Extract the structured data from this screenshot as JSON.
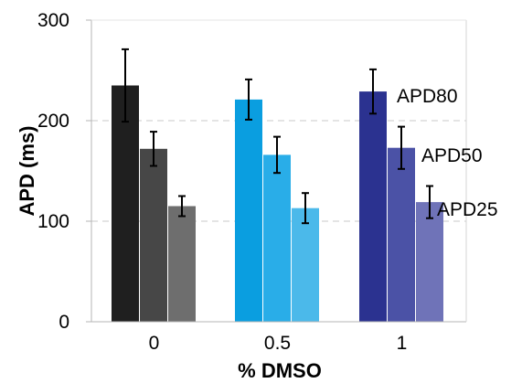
{
  "chart_data": {
    "type": "bar",
    "xlabel": "% DMSO",
    "ylabel": "APD (ms)",
    "ylim": [
      0,
      300
    ],
    "yticks": [
      "0",
      "100",
      "200",
      "300"
    ],
    "ytick_values": [
      0,
      100,
      200,
      300
    ],
    "categories": [
      "0",
      "0.5",
      "1"
    ],
    "grid": "horizontal dashed",
    "series": [
      {
        "name": "APD80",
        "values": [
          235,
          221,
          229
        ],
        "errors": [
          36,
          20,
          22
        ]
      },
      {
        "name": "APD50",
        "values": [
          172,
          166,
          173
        ],
        "errors": [
          17,
          18,
          21
        ]
      },
      {
        "name": "APD25",
        "values": [
          115,
          113,
          119
        ],
        "errors": [
          10,
          15,
          16
        ]
      }
    ],
    "colors": [
      [
        "#1f1f1f",
        "#474747",
        "#6e6e6e"
      ],
      [
        "#0a9ee0",
        "#29ade8",
        "#4bb9ea"
      ],
      [
        "#2b3290",
        "#4b52a6",
        "#6f73b8"
      ]
    ],
    "annotations": [
      "APD80",
      "APD50",
      "APD25"
    ]
  }
}
